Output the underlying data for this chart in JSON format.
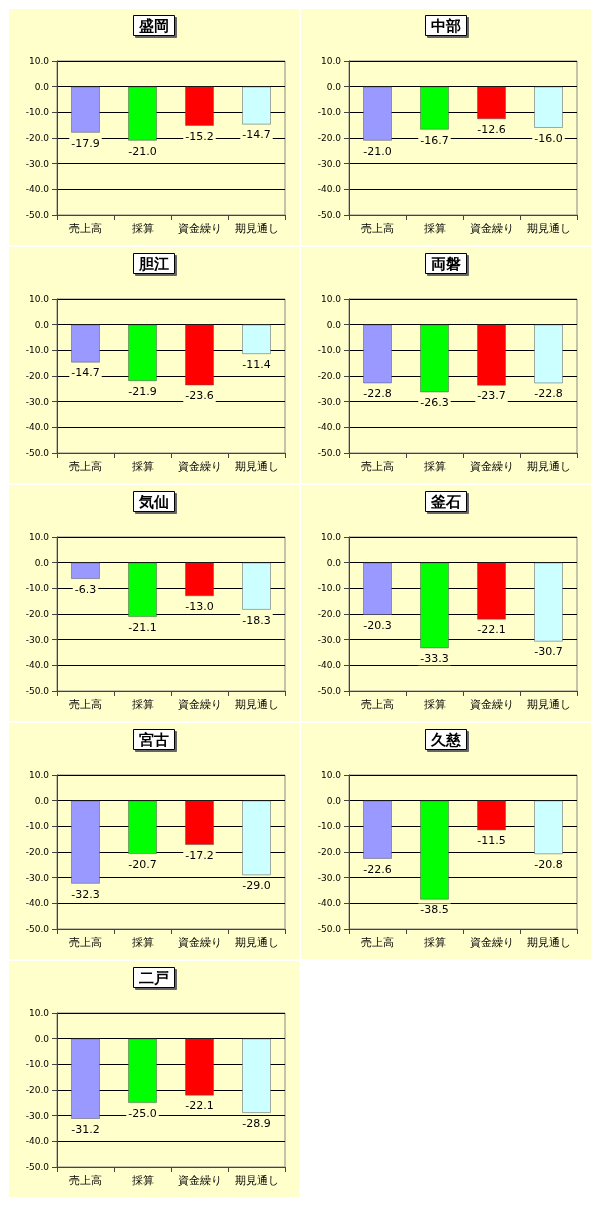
{
  "chart_data": [
    {
      "type": "bar",
      "title": "盛岡",
      "categories": [
        "売上高",
        "採算",
        "資金繰り",
        "期見通し"
      ],
      "values": [
        -17.9,
        -21.0,
        -15.2,
        -14.7
      ],
      "value_labels": [
        "-17.9",
        "-21.0",
        "-15.2",
        "-14.7"
      ],
      "colors": [
        "#9999ff",
        "#00ff00",
        "#ff0000",
        "#ccffff"
      ],
      "ylim": [
        -50,
        10
      ],
      "yticks": [
        {
          "value": 10,
          "label": "10.0"
        },
        {
          "value": 0,
          "label": "0.0"
        },
        {
          "value": -10,
          "label": "-10.0"
        },
        {
          "value": -20,
          "label": "-20.0"
        },
        {
          "value": -30,
          "label": "-30.0"
        },
        {
          "value": -40,
          "label": "-40.0"
        },
        {
          "value": -50,
          "label": "-50.0"
        }
      ],
      "grid": "y"
    },
    {
      "type": "bar",
      "title": "中部",
      "categories": [
        "売上高",
        "採算",
        "資金繰り",
        "期見通し"
      ],
      "values": [
        -21.0,
        -16.7,
        -12.6,
        -16.0
      ],
      "value_labels": [
        "-21.0",
        "-16.7",
        "-12.6",
        "-16.0"
      ],
      "colors": [
        "#9999ff",
        "#00ff00",
        "#ff0000",
        "#ccffff"
      ],
      "ylim": [
        -50,
        10
      ],
      "yticks": [
        {
          "value": 10,
          "label": "10.0"
        },
        {
          "value": 0,
          "label": "0.0"
        },
        {
          "value": -10,
          "label": "-10.0"
        },
        {
          "value": -20,
          "label": "-20.0"
        },
        {
          "value": -30,
          "label": "-30.0"
        },
        {
          "value": -40,
          "label": "-40.0"
        },
        {
          "value": -50,
          "label": "-50.0"
        }
      ],
      "grid": "y"
    },
    {
      "type": "bar",
      "title": "胆江",
      "categories": [
        "売上高",
        "採算",
        "資金繰り",
        "期見通し"
      ],
      "values": [
        -14.7,
        -21.9,
        -23.6,
        -11.4
      ],
      "value_labels": [
        "-14.7",
        "-21.9",
        "-23.6",
        "-11.4"
      ],
      "colors": [
        "#9999ff",
        "#00ff00",
        "#ff0000",
        "#ccffff"
      ],
      "ylim": [
        -50,
        10
      ],
      "yticks": [
        {
          "value": 10,
          "label": "10.0"
        },
        {
          "value": 0,
          "label": "0.0"
        },
        {
          "value": -10,
          "label": "-10.0"
        },
        {
          "value": -20,
          "label": "-20.0"
        },
        {
          "value": -30,
          "label": "-30.0"
        },
        {
          "value": -40,
          "label": "-40.0"
        },
        {
          "value": -50,
          "label": "-50.0"
        }
      ],
      "grid": "y"
    },
    {
      "type": "bar",
      "title": "両磐",
      "categories": [
        "売上高",
        "採算",
        "資金繰り",
        "期見通し"
      ],
      "values": [
        -22.8,
        -26.3,
        -23.7,
        -22.8
      ],
      "value_labels": [
        "-22.8",
        "-26.3",
        "-23.7",
        "-22.8"
      ],
      "colors": [
        "#9999ff",
        "#00ff00",
        "#ff0000",
        "#ccffff"
      ],
      "ylim": [
        -50,
        10
      ],
      "yticks": [
        {
          "value": 10,
          "label": "10.0"
        },
        {
          "value": 0,
          "label": "0.0"
        },
        {
          "value": -10,
          "label": "-10.0"
        },
        {
          "value": -20,
          "label": "-20.0"
        },
        {
          "value": -30,
          "label": "-30.0"
        },
        {
          "value": -40,
          "label": "-40.0"
        },
        {
          "value": -50,
          "label": "-50.0"
        }
      ],
      "grid": "y"
    },
    {
      "type": "bar",
      "title": "気仙",
      "categories": [
        "売上高",
        "採算",
        "資金繰り",
        "期見通し"
      ],
      "values": [
        -6.3,
        -21.1,
        -13.0,
        -18.3
      ],
      "value_labels": [
        "-6.3",
        "-21.1",
        "-13.0",
        "-18.3"
      ],
      "colors": [
        "#9999ff",
        "#00ff00",
        "#ff0000",
        "#ccffff"
      ],
      "ylim": [
        -50,
        10
      ],
      "yticks": [
        {
          "value": 10,
          "label": "10.0"
        },
        {
          "value": 0,
          "label": "0.0"
        },
        {
          "value": -10,
          "label": "-10.0"
        },
        {
          "value": -20,
          "label": "-20.0"
        },
        {
          "value": -30,
          "label": "-30.0"
        },
        {
          "value": -40,
          "label": "-40.0"
        },
        {
          "value": -50,
          "label": "-50.0"
        }
      ],
      "grid": "y"
    },
    {
      "type": "bar",
      "title": "釜石",
      "categories": [
        "売上高",
        "採算",
        "資金繰り",
        "期見通し"
      ],
      "values": [
        -20.3,
        -33.3,
        -22.1,
        -30.7
      ],
      "value_labels": [
        "-20.3",
        "-33.3",
        "-22.1",
        "-30.7"
      ],
      "colors": [
        "#9999ff",
        "#00ff00",
        "#ff0000",
        "#ccffff"
      ],
      "ylim": [
        -50,
        10
      ],
      "yticks": [
        {
          "value": 10,
          "label": "10.0"
        },
        {
          "value": 0,
          "label": "0.0"
        },
        {
          "value": -10,
          "label": "-10.0"
        },
        {
          "value": -20,
          "label": "-20.0"
        },
        {
          "value": -30,
          "label": "-30.0"
        },
        {
          "value": -40,
          "label": "-40.0"
        },
        {
          "value": -50,
          "label": "-50.0"
        }
      ],
      "grid": "y"
    },
    {
      "type": "bar",
      "title": "宮古",
      "categories": [
        "売上高",
        "採算",
        "資金繰り",
        "期見通し"
      ],
      "values": [
        -32.3,
        -20.7,
        -17.2,
        -29.0
      ],
      "value_labels": [
        "-32.3",
        "-20.7",
        "-17.2",
        "-29.0"
      ],
      "colors": [
        "#9999ff",
        "#00ff00",
        "#ff0000",
        "#ccffff"
      ],
      "ylim": [
        -50,
        10
      ],
      "yticks": [
        {
          "value": 10,
          "label": "10.0"
        },
        {
          "value": 0,
          "label": "0.0"
        },
        {
          "value": -10,
          "label": "-10.0"
        },
        {
          "value": -20,
          "label": "-20.0"
        },
        {
          "value": -30,
          "label": "-30.0"
        },
        {
          "value": -40,
          "label": "-40.0"
        },
        {
          "value": -50,
          "label": "-50.0"
        }
      ],
      "grid": "y"
    },
    {
      "type": "bar",
      "title": "久慈",
      "categories": [
        "売上高",
        "採算",
        "資金繰り",
        "期見通し"
      ],
      "values": [
        -22.6,
        -38.5,
        -11.5,
        -20.8
      ],
      "value_labels": [
        "-22.6",
        "-38.5",
        "-11.5",
        "-20.8"
      ],
      "colors": [
        "#9999ff",
        "#00ff00",
        "#ff0000",
        "#ccffff"
      ],
      "ylim": [
        -50,
        10
      ],
      "yticks": [
        {
          "value": 10,
          "label": "10.0"
        },
        {
          "value": 0,
          "label": "0.0"
        },
        {
          "value": -10,
          "label": "-10.0"
        },
        {
          "value": -20,
          "label": "-20.0"
        },
        {
          "value": -30,
          "label": "-30.0"
        },
        {
          "value": -40,
          "label": "-40.0"
        },
        {
          "value": -50,
          "label": "-50.0"
        }
      ],
      "grid": "y"
    },
    {
      "type": "bar",
      "title": "二戸",
      "categories": [
        "売上高",
        "採算",
        "資金繰り",
        "期見通し"
      ],
      "values": [
        -31.2,
        -25.0,
        -22.1,
        -28.9
      ],
      "value_labels": [
        "-31.2",
        "-25.0",
        "-22.1",
        "-28.9"
      ],
      "colors": [
        "#9999ff",
        "#00ff00",
        "#ff0000",
        "#ccffff"
      ],
      "ylim": [
        -50,
        10
      ],
      "yticks": [
        {
          "value": 10,
          "label": "10.0"
        },
        {
          "value": 0,
          "label": "0.0"
        },
        {
          "value": -10,
          "label": "-10.0"
        },
        {
          "value": -20,
          "label": "-20.0"
        },
        {
          "value": -30,
          "label": "-30.0"
        },
        {
          "value": -40,
          "label": "-40.0"
        },
        {
          "value": -50,
          "label": "-50.0"
        }
      ],
      "grid": "y"
    }
  ]
}
